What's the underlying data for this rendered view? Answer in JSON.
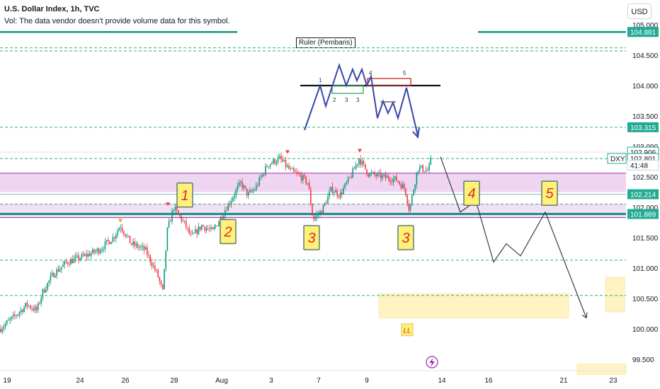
{
  "header": {
    "title": "U.S. Dollar Index, 1h, TVC",
    "volume_note": "Vol: The data vendor doesn't provide volume data for this symbol.",
    "currency": "USD"
  },
  "colors": {
    "bull": "#089981",
    "bear": "#f23645",
    "teal_line": "#0b9a7f",
    "dashed_green": "#2eb36b",
    "purple_zone": "#e9c7ec",
    "purple_border": "#9c27b0",
    "yellow_zone": "#fff3c4",
    "label_bg": "#fff176",
    "label_border": "#5b7d76",
    "label_text": "#d32f2f"
  },
  "chart_data": {
    "type": "candlestick",
    "symbol": "DXY",
    "ylim": [
      99.2,
      105.1
    ],
    "x_ticks": [
      "19",
      "24",
      "26",
      "28",
      "Aug",
      "3",
      "7",
      "9",
      "14",
      "16",
      "21",
      "23"
    ],
    "y_ticks": [
      "105.000",
      "104.500",
      "104.000",
      "103.500",
      "103.000",
      "102.500",
      "102.000",
      "101.500",
      "101.000",
      "100.500",
      "100.000",
      "99.500"
    ],
    "price_tags": [
      {
        "label": "104.881",
        "value": 104.881,
        "kind": "green"
      },
      {
        "label": "103.315",
        "value": 103.315,
        "kind": "green"
      },
      {
        "label": "102.906",
        "value": 102.906,
        "kind": "outline"
      },
      {
        "label": "102.801",
        "value": 102.801,
        "kind": "outline"
      },
      {
        "label": "41:48",
        "value": 102.69,
        "kind": "countdown"
      },
      {
        "label": "102.214",
        "value": 102.214,
        "kind": "teal"
      },
      {
        "label": "101.889",
        "value": 101.889,
        "kind": "green"
      }
    ],
    "symbol_tag": "DXY",
    "horizontal_levels": {
      "solid": [
        104.881,
        101.889
      ],
      "dashed": [
        104.62,
        104.57,
        103.315,
        102.801,
        102.05,
        101.13,
        100.55
      ]
    },
    "zones": {
      "purple": [
        102.25,
        102.56
      ],
      "purple_lower": [
        101.83,
        102.06
      ],
      "yellow": [
        {
          "x_from": 535,
          "x_to": 803,
          "y_from": 100.18,
          "y_to": 100.58
        },
        {
          "x_from": 855,
          "x_to": 882,
          "y_from": 100.28,
          "y_to": 100.85
        },
        {
          "x_from": 815,
          "x_to": 884,
          "y_from": 99.25,
          "y_to": 99.42
        }
      ]
    },
    "ohlc_anchor_points": [
      [
        0,
        100.0
      ],
      [
        20,
        100.2
      ],
      [
        38,
        100.4
      ],
      [
        52,
        100.3
      ],
      [
        60,
        100.6
      ],
      [
        75,
        100.9
      ],
      [
        95,
        101.1
      ],
      [
        120,
        101.2
      ],
      [
        140,
        101.3
      ],
      [
        160,
        101.5
      ],
      [
        170,
        101.7
      ],
      [
        185,
        101.4
      ],
      [
        205,
        101.3
      ],
      [
        222,
        100.9
      ],
      [
        230,
        100.6
      ],
      [
        236,
        101.6
      ],
      [
        245,
        102.0
      ],
      [
        262,
        101.7
      ],
      [
        270,
        101.5
      ],
      [
        285,
        101.7
      ],
      [
        300,
        101.6
      ],
      [
        320,
        102.0
      ],
      [
        340,
        102.4
      ],
      [
        350,
        102.2
      ],
      [
        360,
        102.3
      ],
      [
        378,
        102.7
      ],
      [
        395,
        102.8
      ],
      [
        410,
        102.6
      ],
      [
        425,
        102.5
      ],
      [
        435,
        102.4
      ],
      [
        442,
        101.8
      ],
      [
        455,
        101.95
      ],
      [
        468,
        102.3
      ],
      [
        480,
        102.2
      ],
      [
        495,
        102.5
      ],
      [
        507,
        102.8
      ],
      [
        520,
        102.55
      ],
      [
        540,
        102.5
      ],
      [
        560,
        102.45
      ],
      [
        572,
        102.3
      ],
      [
        578,
        101.95
      ],
      [
        590,
        102.65
      ],
      [
        605,
        102.6
      ],
      [
        610,
        102.85
      ]
    ],
    "projection_path": [
      [
        622,
        102.83
      ],
      [
        650,
        101.92
      ],
      [
        672,
        102.1
      ],
      [
        697,
        101.1
      ],
      [
        715,
        101.4
      ],
      [
        735,
        101.2
      ],
      [
        770,
        101.92
      ],
      [
        828,
        100.18
      ]
    ],
    "wave_labels": [
      {
        "text": "1",
        "x": 261,
        "y": 102.2
      },
      {
        "text": "2",
        "x": 322,
        "y": 101.6
      },
      {
        "text": "3",
        "x": 440,
        "y": 101.5
      },
      {
        "text": "3",
        "x": 573,
        "y": 101.5
      },
      {
        "text": "4",
        "x": 666,
        "y": 102.23
      },
      {
        "text": "5",
        "x": 776,
        "y": 102.23
      }
    ],
    "small_labels": [
      {
        "text": "LL",
        "x": 575,
        "y": 99.98
      }
    ],
    "ruler_label": "Ruler (Pembaris)",
    "ruler_numbers": [
      "1",
      "2",
      "3",
      "3",
      "4",
      "5"
    ]
  }
}
